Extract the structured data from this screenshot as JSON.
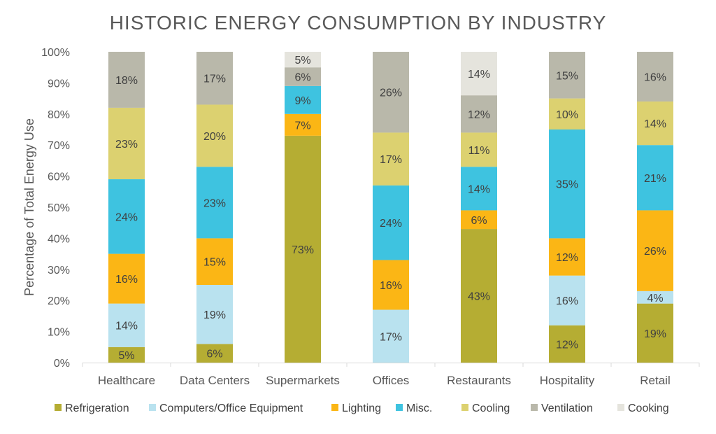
{
  "chart_data": {
    "type": "bar",
    "stacked": true,
    "title": "HISTORIC ENERGY CONSUMPTION BY INDUSTRY",
    "xlabel": "",
    "ylabel": "Percentage of Total Energy Use",
    "ylim": [
      0,
      100
    ],
    "yticks": [
      "0%",
      "10%",
      "20%",
      "30%",
      "40%",
      "50%",
      "60%",
      "70%",
      "80%",
      "90%",
      "100%"
    ],
    "grid": false,
    "legend": "bottom",
    "categories": [
      "Healthcare",
      "Data Centers",
      "Supermarkets",
      "Offices",
      "Restaurants",
      "Hospitality",
      "Retail"
    ],
    "series": [
      {
        "name": "Refrigeration",
        "color": "#b5ad33",
        "values": [
          5,
          6,
          73,
          0,
          43,
          12,
          19
        ]
      },
      {
        "name": "Computers/Office Equipment",
        "color": "#b9e2ef",
        "values": [
          14,
          19,
          0,
          17,
          0,
          16,
          4
        ]
      },
      {
        "name": "Lighting",
        "color": "#fbb615",
        "values": [
          16,
          15,
          7,
          16,
          6,
          12,
          26
        ]
      },
      {
        "name": "Misc.",
        "color": "#3ec3e0",
        "values": [
          24,
          23,
          9,
          24,
          14,
          35,
          21
        ]
      },
      {
        "name": "Cooling",
        "color": "#dcd170",
        "values": [
          23,
          20,
          0,
          17,
          11,
          10,
          14
        ]
      },
      {
        "name": "Ventilation",
        "color": "#b9b8aa",
        "values": [
          18,
          17,
          6,
          26,
          12,
          15,
          16
        ]
      },
      {
        "name": "Cooking",
        "color": "#e5e4dd",
        "values": [
          0,
          0,
          5,
          0,
          14,
          0,
          0
        ]
      }
    ]
  }
}
